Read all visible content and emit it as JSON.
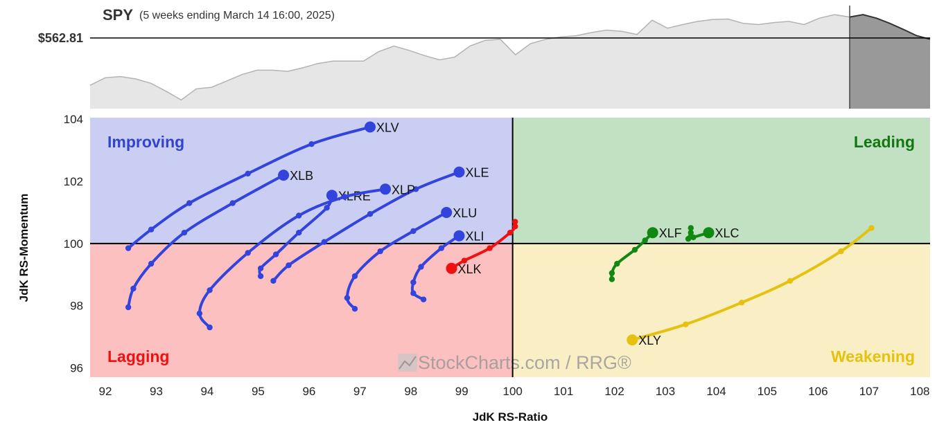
{
  "chart_data": [
    {
      "type": "area",
      "title": "SPY",
      "subtitle": "(5 weeks ending March 14 16:00, 2025)",
      "reference_label": "$562.81",
      "colors": {
        "fill": "#e6e6e6",
        "line": "#b3b3b3",
        "forecast_fill": "#999999",
        "forecast_line": "#333333",
        "reference": "#000000"
      },
      "x": [
        0,
        1,
        2,
        3,
        4,
        5,
        6,
        7,
        8,
        9,
        10,
        11,
        12,
        13,
        14,
        15,
        16,
        17,
        18,
        19,
        20,
        21,
        22,
        23,
        24,
        25,
        26,
        27,
        28,
        29,
        30,
        31,
        32,
        33,
        34,
        35,
        36,
        37,
        38,
        39,
        40,
        41,
        42,
        43,
        44,
        45,
        46,
        47,
        48,
        49,
        50
      ],
      "values": [
        550.9,
        552.8,
        553.1,
        552.5,
        551.4,
        549.4,
        547.2,
        550.0,
        550.4,
        552.0,
        553.6,
        554.7,
        554.7,
        554.4,
        555.3,
        556.4,
        557.0,
        557.0,
        557.0,
        559.4,
        560.8,
        559.7,
        558.4,
        557.3,
        558.0,
        560.8,
        562.2,
        562.5,
        558.6,
        561.4,
        562.5,
        563.1,
        563.4,
        564.2,
        564.8,
        564.5,
        563.7,
        567.3,
        565.3,
        566.2,
        567.0,
        567.5,
        567.6,
        566.5,
        566.2,
        566.7,
        567.0,
        566.2,
        567.8,
        568.7,
        568.1
      ],
      "forecast_values": [
        568.1,
        568.7,
        567.8,
        566.5,
        565.0,
        563.4,
        562.5
      ],
      "reference_value": 562.81
    },
    {
      "type": "scatter",
      "title": "",
      "xlabel": "JdK RS-Ratio",
      "ylabel": "JdK RS-Momentum",
      "xlim": [
        91.7,
        108.2
      ],
      "ylim": [
        95.7,
        104.05
      ],
      "xticks": [
        92,
        93,
        94,
        95,
        96,
        97,
        98,
        99,
        100,
        101,
        102,
        103,
        104,
        105,
        106,
        107,
        108
      ],
      "yticks": [
        96,
        98,
        100,
        102,
        104
      ],
      "quadrants": [
        {
          "name": "Improving",
          "color": "#3344cc",
          "fill": "#c9cef2"
        },
        {
          "name": "Leading",
          "color": "#117711",
          "fill": "#c2e0c2"
        },
        {
          "name": "Lagging",
          "color": "#ee1111",
          "fill": "#fcc0c0"
        },
        {
          "name": "Weakening",
          "color": "#e5c20f",
          "fill": "#faefc4"
        }
      ],
      "watermark": "StockCharts.com / RRG®",
      "series": [
        {
          "name": "XLV",
          "color": "#3344dd",
          "x": [
            92.45,
            92.9,
            93.65,
            94.8,
            96.05,
            97.2
          ],
          "y": [
            99.85,
            100.45,
            101.3,
            102.25,
            103.2,
            103.75
          ]
        },
        {
          "name": "XLB",
          "color": "#3344dd",
          "x": [
            92.45,
            92.55,
            92.9,
            93.55,
            94.5,
            95.5
          ],
          "y": [
            97.95,
            98.55,
            99.35,
            100.35,
            101.3,
            102.2
          ]
        },
        {
          "name": "XLE",
          "color": "#3344dd",
          "x": [
            95.3,
            95.6,
            96.3,
            97.2,
            98.1,
            98.95
          ],
          "y": [
            98.8,
            99.3,
            100.05,
            100.95,
            101.75,
            102.3
          ]
        },
        {
          "name": "XLRE",
          "color": "#3344dd",
          "x": [
            95.05,
            95.05,
            95.35,
            95.8,
            96.35,
            96.45
          ],
          "y": [
            98.95,
            99.2,
            99.65,
            100.35,
            101.15,
            101.55
          ]
        },
        {
          "name": "XLP",
          "color": "#3344dd",
          "x": [
            94.05,
            93.85,
            94.05,
            94.8,
            95.8,
            96.7,
            97.5
          ],
          "y": [
            97.3,
            97.75,
            98.5,
            99.7,
            100.9,
            101.5,
            101.75
          ]
        },
        {
          "name": "XLU",
          "color": "#3344dd",
          "x": [
            96.9,
            96.75,
            96.9,
            97.4,
            98.05,
            98.7
          ],
          "y": [
            97.9,
            98.25,
            98.95,
            99.75,
            100.4,
            101.0
          ]
        },
        {
          "name": "XLI",
          "color": "#3344dd",
          "x": [
            98.25,
            98.05,
            98.05,
            98.2,
            98.6,
            98.95
          ],
          "y": [
            98.2,
            98.4,
            98.75,
            99.25,
            99.85,
            100.25
          ]
        },
        {
          "name": "XLK",
          "color": "#ee1111",
          "x": [
            100.05,
            100.05,
            99.95,
            99.55,
            99.05,
            98.8
          ],
          "y": [
            100.7,
            100.55,
            100.35,
            99.85,
            99.45,
            99.2
          ]
        },
        {
          "name": "XLF",
          "color": "#118811",
          "x": [
            101.95,
            101.95,
            102.05,
            102.4,
            102.6,
            102.75
          ],
          "y": [
            98.85,
            99.05,
            99.35,
            99.8,
            100.1,
            100.35
          ]
        },
        {
          "name": "XLC",
          "color": "#118811",
          "x": [
            103.5,
            103.5,
            103.45,
            103.55,
            103.85
          ],
          "y": [
            100.5,
            100.35,
            100.15,
            100.2,
            100.35
          ]
        },
        {
          "name": "XLY",
          "color": "#e5c20f",
          "x": [
            107.05,
            106.45,
            105.45,
            104.5,
            103.4,
            102.35
          ],
          "y": [
            100.5,
            99.75,
            98.8,
            98.1,
            97.4,
            96.9
          ]
        }
      ]
    }
  ]
}
